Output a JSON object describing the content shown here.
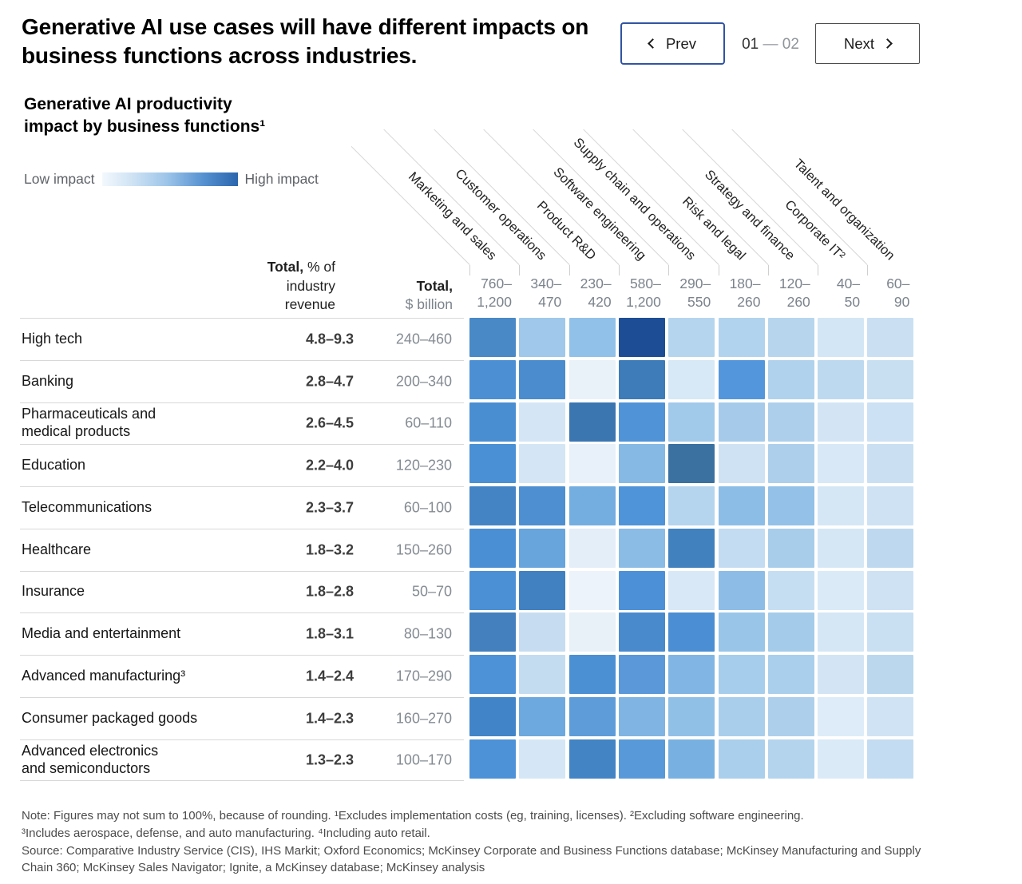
{
  "header": {
    "title": "Generative AI use cases will have different impacts on business functions across industries.",
    "pager": {
      "prev_label": "Prev",
      "next_label": "Next",
      "page_current": "01",
      "page_separator": "—",
      "page_total": "02"
    }
  },
  "chart": {
    "subtitle": "Generative AI productivity\nimpact by business functions¹",
    "legend": {
      "low_label": "Low impact",
      "high_label": "High impact"
    },
    "table_headers": {
      "pct_bold": "Total,",
      "pct_rest": "% of industry revenue",
      "usd_bold": "Total,",
      "usd_rest": "$ billion"
    },
    "accent_colors": {
      "low": "#f3f8fd",
      "high": "#1d4e95",
      "mid": "#4a8fd3"
    }
  },
  "chart_data": {
    "type": "heatmap",
    "title": "Generative AI productivity impact by business functions¹",
    "legend": {
      "low_label": "Low impact",
      "high_label": "High impact",
      "position": "top-left"
    },
    "columns": [
      {
        "label": "Marketing and sales",
        "total_usd_billion": "760–1,200"
      },
      {
        "label": "Customer operations",
        "total_usd_billion": "340–470"
      },
      {
        "label": "Product R&D",
        "total_usd_billion": "230–420"
      },
      {
        "label": "Software engineering",
        "total_usd_billion": "580–1,200"
      },
      {
        "label": "Supply chain and operations",
        "total_usd_billion": "290–550"
      },
      {
        "label": "Risk and legal",
        "total_usd_billion": "180–260"
      },
      {
        "label": "Strategy and finance",
        "total_usd_billion": "120–260"
      },
      {
        "label": "Corporate IT²",
        "total_usd_billion": "40–50"
      },
      {
        "label": "Talent and organization",
        "total_usd_billion": "60–90"
      }
    ],
    "rows": [
      {
        "industry_lines": [
          "High tech"
        ],
        "total_pct_of_industry_revenue": "4.8–9.3",
        "total_usd_billion": "240–460",
        "cell_colors": [
          "#4889c6",
          "#9fc8ea",
          "#91c1e8",
          "#1d4e95",
          "#b5d5ee",
          "#b2d3ed",
          "#b7d6ee",
          "#d3e6f5",
          "#cadff2"
        ]
      },
      {
        "industry_lines": [
          "Banking"
        ],
        "total_pct_of_industry_revenue": "2.8–4.7",
        "total_usd_billion": "200–340",
        "cell_colors": [
          "#4c90d3",
          "#4a8ccd",
          "#e9f1f9",
          "#3d7cb8",
          "#d7e8f6",
          "#5496dc",
          "#b1d2ec",
          "#bdd9ef",
          "#c7dff1"
        ]
      },
      {
        "industry_lines": [
          "Pharmaceuticals and",
          "medical products"
        ],
        "total_pct_of_industry_revenue": "2.6–4.5",
        "total_usd_billion": "60–110",
        "cell_colors": [
          "#4a8ed2",
          "#d4e6f5",
          "#3b76b1",
          "#5093d7",
          "#a1c9ea",
          "#a6cbea",
          "#adcfec",
          "#d3e5f4",
          "#cce1f3"
        ]
      },
      {
        "industry_lines": [
          "Education"
        ],
        "total_pct_of_industry_revenue": "2.2–4.0",
        "total_usd_billion": "120–230",
        "cell_colors": [
          "#4a90d5",
          "#d4e6f5",
          "#e8f1f9",
          "#86b9e4",
          "#3a71a1",
          "#cfe2f3",
          "#adcfec",
          "#d8e8f6",
          "#cae0f2"
        ]
      },
      {
        "industry_lines": [
          "Telecommunications"
        ],
        "total_pct_of_industry_revenue": "2.3–3.7",
        "total_usd_billion": "60–100",
        "cell_colors": [
          "#4484c4",
          "#4d8fd0",
          "#74aee0",
          "#4f93d8",
          "#b5d4ed",
          "#8cbde6",
          "#93c1e7",
          "#d5e7f5",
          "#cee2f4"
        ]
      },
      {
        "industry_lines": [
          "Healthcare"
        ],
        "total_pct_of_industry_revenue": "1.8–3.2",
        "total_usd_billion": "150–260",
        "cell_colors": [
          "#4a8fd3",
          "#67a5dc",
          "#e4eef8",
          "#8bbce5",
          "#4181bd",
          "#c4dcf1",
          "#a7cdeb",
          "#d5e7f5",
          "#bed9ef"
        ]
      },
      {
        "industry_lines": [
          "Insurance"
        ],
        "total_pct_of_industry_revenue": "1.8–2.8",
        "total_usd_billion": "50–70",
        "cell_colors": [
          "#4b90d5",
          "#4181c1",
          "#ecf3fa",
          "#4c91d8",
          "#d8e8f6",
          "#8dbde6",
          "#c6def2",
          "#daeaf7",
          "#cee2f4"
        ]
      },
      {
        "industry_lines": [
          "Media and entertainment"
        ],
        "total_pct_of_industry_revenue": "1.8–3.1",
        "total_usd_billion": "80–130",
        "cell_colors": [
          "#4380bd",
          "#c6ddf1",
          "#e8f0f8",
          "#498acd",
          "#4b8ed3",
          "#99c5e9",
          "#a4cbea",
          "#d5e7f5",
          "#c9dff2"
        ]
      },
      {
        "industry_lines": [
          "Advanced manufacturing³"
        ],
        "total_pct_of_industry_revenue": "1.4–2.4",
        "total_usd_billion": "170–290",
        "cell_colors": [
          "#4d91d6",
          "#c4dcf0",
          "#4c90d4",
          "#5a98da",
          "#81b5e3",
          "#a6cdeb",
          "#aacfec",
          "#d3e5f4",
          "#bad7ee"
        ]
      },
      {
        "industry_lines": [
          "Consumer packaged goods"
        ],
        "total_pct_of_industry_revenue": "1.4–2.3",
        "total_usd_billion": "160–270",
        "cell_colors": [
          "#4184c7",
          "#6da9de",
          "#5e9cd9",
          "#80b4e2",
          "#91c0e7",
          "#a9ceec",
          "#adcfec",
          "#ddecf8",
          "#d0e3f4"
        ]
      },
      {
        "industry_lines": [
          "Advanced electronics",
          "and semiconductors"
        ],
        "total_pct_of_industry_revenue": "1.3–2.3",
        "total_usd_billion": "100–170",
        "cell_colors": [
          "#4d92d7",
          "#d5e7f6",
          "#4284c4",
          "#589ad9",
          "#78b1e1",
          "#aacfec",
          "#b4d4ee",
          "#daeaf7",
          "#c3dcf1"
        ]
      }
    ]
  },
  "footer": {
    "lines": [
      "Note: Figures may not sum to 100%, because of rounding. ¹Excludes implementation costs (eg, training, licenses). ²Excluding software engineering.",
      "³Includes aerospace, defense, and auto manufacturing. ⁴Including auto retail.",
      "Source: Comparative Industry Service (CIS), IHS Markit; Oxford Economics; McKinsey Corporate and Business Functions database; McKinsey Manufacturing and Supply Chain 360; McKinsey Sales Navigator; Ignite, a McKinsey database; McKinsey analysis"
    ]
  }
}
